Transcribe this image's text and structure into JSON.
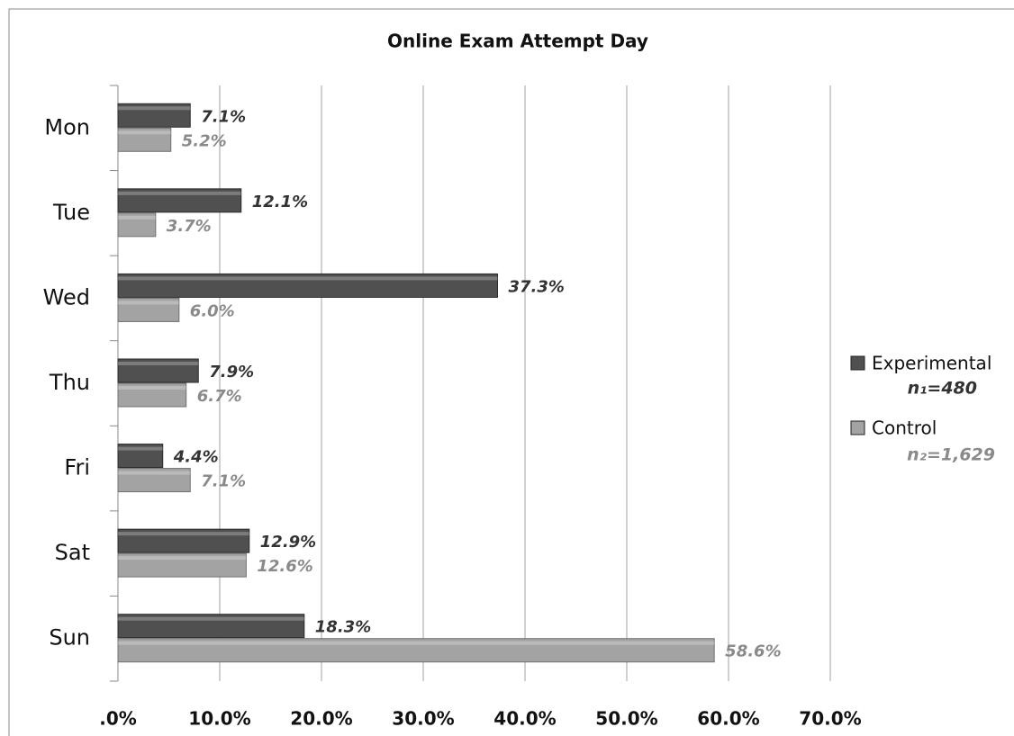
{
  "chart_data": {
    "type": "barh",
    "title": "Online Exam Attempt Day",
    "categories": [
      "Mon",
      "Tue",
      "Wed",
      "Thu",
      "Fri",
      "Sat",
      "Sun"
    ],
    "series": [
      {
        "name": "Experimental",
        "color": "#505050",
        "values": [
          7.1,
          12.1,
          37.3,
          7.9,
          4.4,
          12.9,
          18.3
        ],
        "value_labels": [
          "7.1%",
          "12.1%",
          "37.3%",
          "7.9%",
          "4.4%",
          "12.9%",
          "18.3%"
        ]
      },
      {
        "name": "Control",
        "color": "#a3a3a3",
        "values": [
          5.2,
          3.7,
          6.0,
          6.7,
          7.1,
          12.6,
          58.6
        ],
        "value_labels": [
          "5.2%",
          "3.7%",
          "6.0%",
          "6.7%",
          "7.1%",
          "12.6%",
          "58.6%"
        ]
      }
    ],
    "annotations": [
      "n₁=480",
      "n₂=1,629"
    ],
    "xlim": [
      0,
      70
    ],
    "xticks": [
      {
        "value": 0,
        "label": ".0%"
      },
      {
        "value": 10,
        "label": "10.0%"
      },
      {
        "value": 20,
        "label": "20.0%"
      },
      {
        "value": 30,
        "label": "30.0%"
      },
      {
        "value": 40,
        "label": "40.0%"
      },
      {
        "value": 50,
        "label": "50.0%"
      },
      {
        "value": 60,
        "label": "60.0%"
      },
      {
        "value": 70,
        "label": "70.0%"
      }
    ],
    "grid": true,
    "legend": "right"
  }
}
